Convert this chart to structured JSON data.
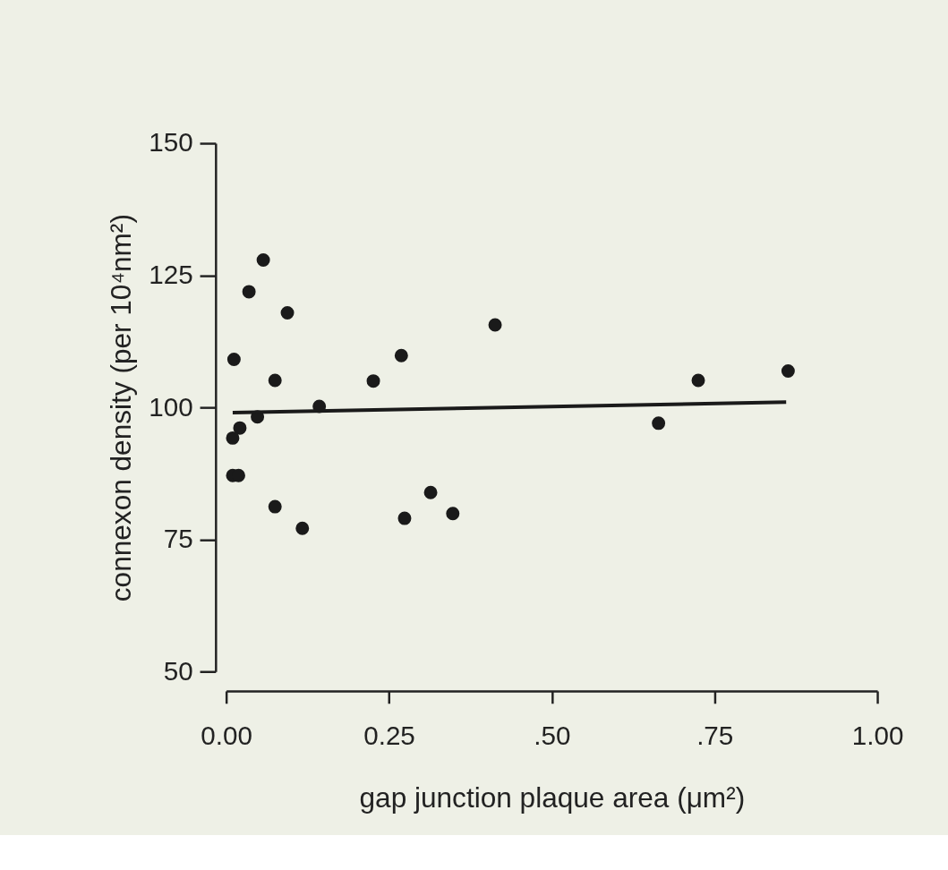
{
  "chart_data": {
    "type": "scatter",
    "xlabel": "gap junction plaque area (μm²)",
    "ylabel": "connexon density (per 10⁴nm²)",
    "xlim": [
      0,
      1
    ],
    "ylim": [
      50,
      150
    ],
    "xticks": [
      {
        "value": 0,
        "label": "0.00"
      },
      {
        "value": 0.25,
        "label": "0.25"
      },
      {
        "value": 0.5,
        "label": ".50"
      },
      {
        "value": 0.75,
        "label": ".75"
      },
      {
        "value": 1,
        "label": "1.00"
      }
    ],
    "yticks": [
      50,
      75,
      100,
      125,
      150
    ],
    "grid": false,
    "series": [
      {
        "color": "#1a1a1a",
        "marker": "circle",
        "x": [
          0.057,
          0.035,
          0.094,
          0.413,
          0.012,
          0.269,
          0.075,
          0.226,
          0.143,
          0.048,
          0.021,
          0.01,
          0.01,
          0.019,
          0.075,
          0.117,
          0.314,
          0.274,
          0.348,
          0.725,
          0.863,
          0.664
        ],
        "values": [
          127.9,
          121.9,
          117.9,
          115.6,
          109.1,
          109.8,
          105.1,
          105.0,
          100.2,
          98.2,
          96.1,
          94.2,
          87.1,
          87.1,
          81.2,
          77.1,
          83.9,
          79.0,
          79.9,
          105.1,
          106.9,
          97.0
        ]
      },
      {
        "type": "line",
        "color": "#1a1a1a",
        "line_style": "solid",
        "x": [
          0.01,
          0.86
        ],
        "values": [
          99,
          101
        ]
      }
    ]
  }
}
